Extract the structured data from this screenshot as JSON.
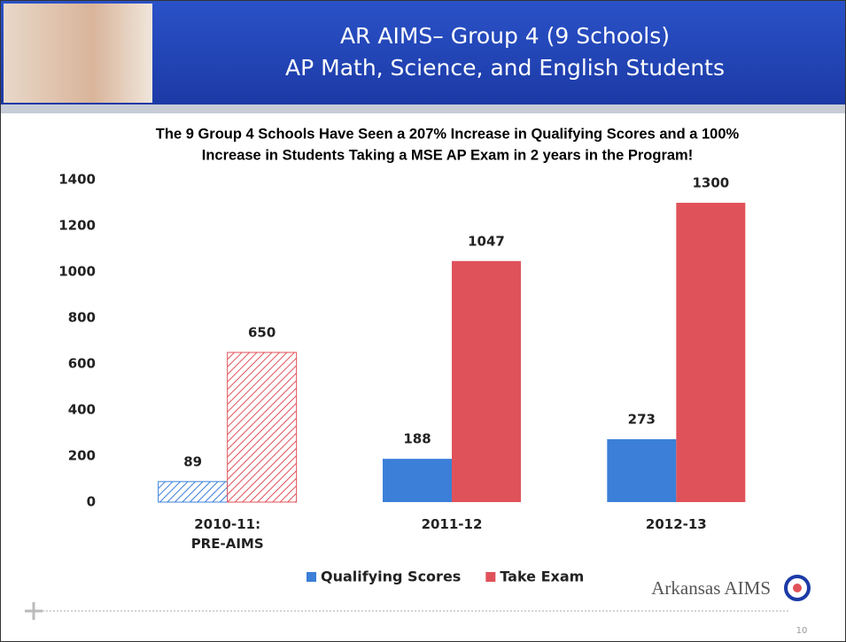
{
  "header": {
    "title_lines": [
      "AR AIMS– Group  4 (9 Schools)",
      "AP Math, Science, and English Students"
    ]
  },
  "chart_data": {
    "type": "bar",
    "subtitle_lines": [
      "The 9 Group 4 Schools Have Seen a 207% Increase in Qualifying Scores and a 100%",
      "Increase in Students Taking a MSE AP Exam in 2 years in the Program!"
    ],
    "categories": [
      "2010-11:\nPRE-AIMS",
      "2011-12",
      "2012-13"
    ],
    "series": [
      {
        "name": "Qualifying Scores",
        "color": "#3b7fd8",
        "values": [
          89,
          188,
          273
        ]
      },
      {
        "name": "Take Exam",
        "color": "#e0525a",
        "values": [
          650,
          1047,
          1300
        ]
      }
    ],
    "hatched": [
      true,
      false,
      false
    ],
    "ylim": [
      0,
      1400
    ],
    "yticks": [
      0,
      200,
      400,
      600,
      800,
      1000,
      1200,
      1400
    ],
    "legend": "bottom"
  },
  "footer": {
    "logo": "Arkansas AIMS",
    "page_number": "10"
  }
}
